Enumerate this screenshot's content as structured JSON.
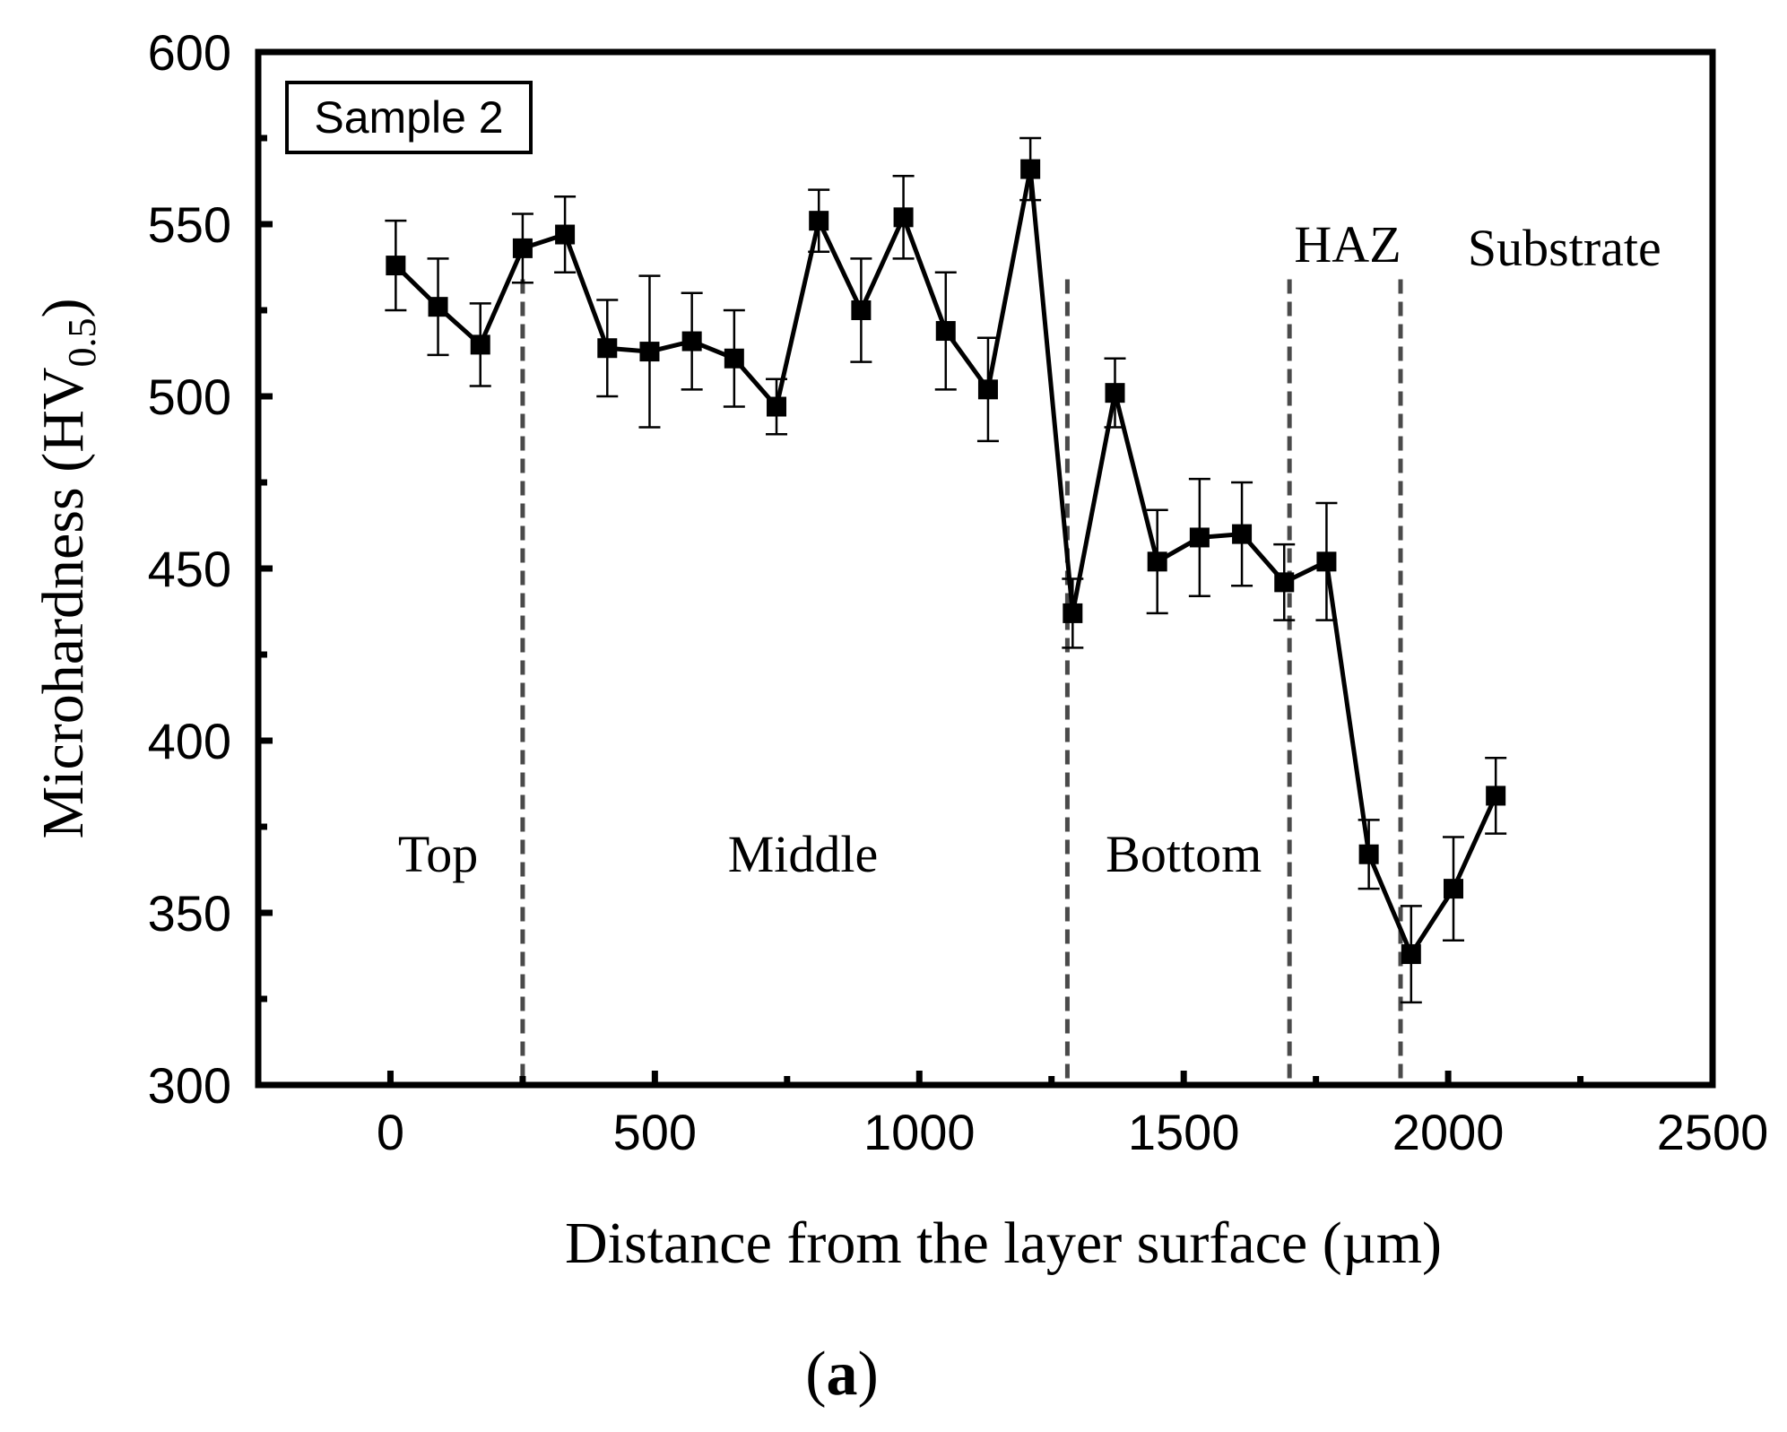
{
  "chart_data": {
    "type": "line",
    "xlabel": "Distance from the layer surface (µm)",
    "ylabel_main": "Microhardness (HV",
    "ylabel_sub": "0.5",
    "ylabel_close": ")",
    "panel_label_open": "(",
    "panel_label_letter": "a",
    "panel_label_close": ")",
    "sample_label": "Sample 2",
    "xlim": [
      -250,
      2500
    ],
    "ylim": [
      300,
      600
    ],
    "x_ticks": [
      0,
      500,
      1000,
      1500,
      2000,
      2500
    ],
    "y_ticks": [
      300,
      350,
      400,
      450,
      500,
      550,
      600
    ],
    "x_tick_labels": [
      "0",
      "500",
      "1000",
      "1500",
      "2000",
      "2500"
    ],
    "y_tick_labels": [
      "300",
      "350",
      "400",
      "450",
      "500",
      "550",
      "600"
    ],
    "series": [
      {
        "name": "Sample 2",
        "x": [
          10,
          90,
          170,
          250,
          330,
          410,
          490,
          570,
          650,
          730,
          810,
          890,
          970,
          1050,
          1130,
          1210,
          1290,
          1370,
          1450,
          1530,
          1610,
          1690,
          1770,
          1850,
          1930,
          2010,
          2090
        ],
        "y": [
          538,
          526,
          515,
          543,
          547,
          514,
          513,
          516,
          511,
          497,
          551,
          525,
          552,
          519,
          502,
          566,
          437,
          501,
          452,
          459,
          460,
          446,
          452,
          367,
          338,
          357,
          384
        ],
        "err": [
          13,
          14,
          12,
          10,
          11,
          14,
          22,
          14,
          14,
          8,
          9,
          15,
          12,
          17,
          15,
          9,
          10,
          10,
          15,
          17,
          15,
          11,
          17,
          10,
          14,
          15,
          11
        ],
        "color": "#000000"
      }
    ],
    "region_boundaries": [
      250,
      1280,
      1700,
      1910
    ],
    "region_labels": [
      {
        "text": "Top",
        "x": 90,
        "y": 362
      },
      {
        "text": "Middle",
        "x": 780,
        "y": 362
      },
      {
        "text": "Bottom",
        "x": 1500,
        "y": 362
      },
      {
        "text": "HAZ",
        "x": 1810,
        "y": 539
      },
      {
        "text": "Substrate",
        "x": 2220,
        "y": 538
      }
    ]
  }
}
